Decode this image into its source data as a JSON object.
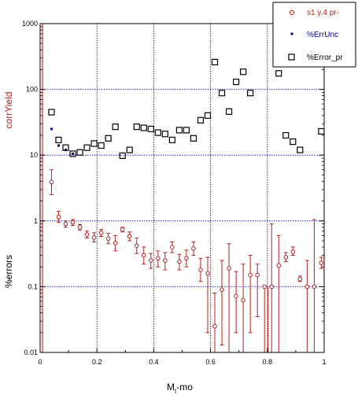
{
  "chart_data": {
    "type": "scatter",
    "xlabel_main": "M",
    "xlabel_sub": "t",
    "xlabel_suffix": "-mo",
    "ylabel_top": "corrYield",
    "ylabel_bottom": "%errors",
    "xlim": [
      0,
      1
    ],
    "ylim": [
      0.01,
      1000
    ],
    "yscale": "log",
    "grid": true,
    "legend_position": "top-right",
    "x_ticks": [
      "0",
      "0.2",
      "0.4",
      "0.6",
      "0.8",
      "1"
    ],
    "y_ticks": [
      "0.01",
      "0.1",
      "1",
      "10",
      "100",
      "1000"
    ],
    "colors": {
      "s1": "#b22222",
      "err_unc": "#00008b",
      "error_pr": "#000000",
      "grid": "#0000cc",
      "frame": "#000000",
      "highlight_line": "#cc0000"
    },
    "series": [
      {
        "name": "s1 y.4 pr-",
        "marker": "open-circle",
        "points": [
          {
            "x": 0.04,
            "y": 3.9,
            "lo": 2.5,
            "hi": 6.0
          },
          {
            "x": 0.065,
            "y": 1.15,
            "lo": 0.95,
            "hi": 1.4
          },
          {
            "x": 0.09,
            "y": 0.9,
            "lo": 0.8,
            "hi": 1.0
          },
          {
            "x": 0.115,
            "y": 0.95,
            "lo": 0.85,
            "hi": 1.05
          },
          {
            "x": 0.14,
            "y": 0.8,
            "lo": 0.72,
            "hi": 0.88
          },
          {
            "x": 0.165,
            "y": 0.62,
            "lo": 0.55,
            "hi": 0.7
          },
          {
            "x": 0.19,
            "y": 0.56,
            "lo": 0.48,
            "hi": 0.66
          },
          {
            "x": 0.215,
            "y": 0.66,
            "lo": 0.58,
            "hi": 0.74
          },
          {
            "x": 0.24,
            "y": 0.54,
            "lo": 0.45,
            "hi": 0.65
          },
          {
            "x": 0.265,
            "y": 0.46,
            "lo": 0.35,
            "hi": 0.6
          },
          {
            "x": 0.29,
            "y": 0.74,
            "lo": 0.68,
            "hi": 0.8
          },
          {
            "x": 0.315,
            "y": 0.58,
            "lo": 0.5,
            "hi": 0.68
          },
          {
            "x": 0.34,
            "y": 0.42,
            "lo": 0.32,
            "hi": 0.55
          },
          {
            "x": 0.365,
            "y": 0.3,
            "lo": 0.22,
            "hi": 0.4
          },
          {
            "x": 0.39,
            "y": 0.25,
            "lo": 0.19,
            "hi": 0.32
          },
          {
            "x": 0.415,
            "y": 0.27,
            "lo": 0.2,
            "hi": 0.35
          },
          {
            "x": 0.44,
            "y": 0.25,
            "lo": 0.18,
            "hi": 0.33
          },
          {
            "x": 0.465,
            "y": 0.4,
            "lo": 0.33,
            "hi": 0.48
          },
          {
            "x": 0.49,
            "y": 0.24,
            "lo": 0.18,
            "hi": 0.31
          },
          {
            "x": 0.515,
            "y": 0.27,
            "lo": 0.2,
            "hi": 0.36
          },
          {
            "x": 0.54,
            "y": 0.38,
            "lo": 0.3,
            "hi": 0.48
          },
          {
            "x": 0.565,
            "y": 0.18,
            "lo": 0.12,
            "hi": 0.27
          },
          {
            "x": 0.59,
            "y": 0.16,
            "lo": 0.02,
            "hi": 0.28
          },
          {
            "x": 0.615,
            "y": 0.025,
            "lo": 0.01,
            "hi": 0.08
          },
          {
            "x": 0.64,
            "y": 0.09,
            "lo": 0.013,
            "hi": 0.25
          },
          {
            "x": 0.665,
            "y": 0.19,
            "lo": 0.01,
            "hi": 0.45
          },
          {
            "x": 0.69,
            "y": 0.072,
            "lo": 0.02,
            "hi": 0.17
          },
          {
            "x": 0.715,
            "y": 0.062,
            "lo": 0.01,
            "hi": 0.22
          },
          {
            "x": 0.74,
            "y": 0.15,
            "lo": 0.02,
            "hi": 0.3
          },
          {
            "x": 0.765,
            "y": 0.15,
            "lo": 0.035,
            "hi": 0.22
          },
          {
            "x": 0.79,
            "y": 0.1,
            "lo": 0.01,
            "hi": 0.1
          },
          {
            "x": 0.815,
            "y": 0.1,
            "lo": 0.01,
            "hi": 0.9
          },
          {
            "x": 0.84,
            "y": 0.21,
            "lo": 0.01,
            "hi": 0.6
          },
          {
            "x": 0.865,
            "y": 0.28,
            "lo": 0.24,
            "hi": 0.33
          },
          {
            "x": 0.89,
            "y": 0.34,
            "lo": 0.3,
            "hi": 0.4
          },
          {
            "x": 0.915,
            "y": 0.13,
            "lo": 0.12,
            "hi": 0.145
          },
          {
            "x": 0.94,
            "y": 0.1,
            "lo": 0.01,
            "hi": 0.25
          },
          {
            "x": 0.965,
            "y": 0.1,
            "lo": 0.01,
            "hi": 1.05
          },
          {
            "x": 0.99,
            "y": 0.23,
            "lo": 0.19,
            "hi": 0.28
          }
        ]
      },
      {
        "name": "%ErrUnc",
        "marker": "small-filled-square",
        "points": [
          {
            "x": 0.04,
            "y": 25
          },
          {
            "x": 0.065,
            "y": 14
          },
          {
            "x": 0.09,
            "y": 12
          },
          {
            "x": 0.115,
            "y": 10.5
          }
        ]
      },
      {
        "name": "%Error_pr",
        "marker": "open-square",
        "points": [
          {
            "x": 0.04,
            "y": 45
          },
          {
            "x": 0.065,
            "y": 17
          },
          {
            "x": 0.09,
            "y": 13
          },
          {
            "x": 0.115,
            "y": 10.5
          },
          {
            "x": 0.14,
            "y": 11
          },
          {
            "x": 0.165,
            "y": 13
          },
          {
            "x": 0.19,
            "y": 15
          },
          {
            "x": 0.215,
            "y": 14
          },
          {
            "x": 0.24,
            "y": 18
          },
          {
            "x": 0.265,
            "y": 27
          },
          {
            "x": 0.29,
            "y": 9.8
          },
          {
            "x": 0.315,
            "y": 12
          },
          {
            "x": 0.34,
            "y": 27
          },
          {
            "x": 0.365,
            "y": 26
          },
          {
            "x": 0.39,
            "y": 25
          },
          {
            "x": 0.415,
            "y": 22
          },
          {
            "x": 0.44,
            "y": 21
          },
          {
            "x": 0.465,
            "y": 17
          },
          {
            "x": 0.49,
            "y": 24
          },
          {
            "x": 0.515,
            "y": 24
          },
          {
            "x": 0.54,
            "y": 18
          },
          {
            "x": 0.565,
            "y": 34
          },
          {
            "x": 0.59,
            "y": 40
          },
          {
            "x": 0.615,
            "y": 260
          },
          {
            "x": 0.64,
            "y": 88
          },
          {
            "x": 0.665,
            "y": 46
          },
          {
            "x": 0.69,
            "y": 130
          },
          {
            "x": 0.715,
            "y": 185
          },
          {
            "x": 0.74,
            "y": 88
          },
          {
            "x": 0.84,
            "y": 175
          },
          {
            "x": 0.865,
            "y": 20
          },
          {
            "x": 0.89,
            "y": 16
          },
          {
            "x": 0.915,
            "y": 12
          },
          {
            "x": 0.99,
            "y": 23
          }
        ]
      }
    ]
  }
}
